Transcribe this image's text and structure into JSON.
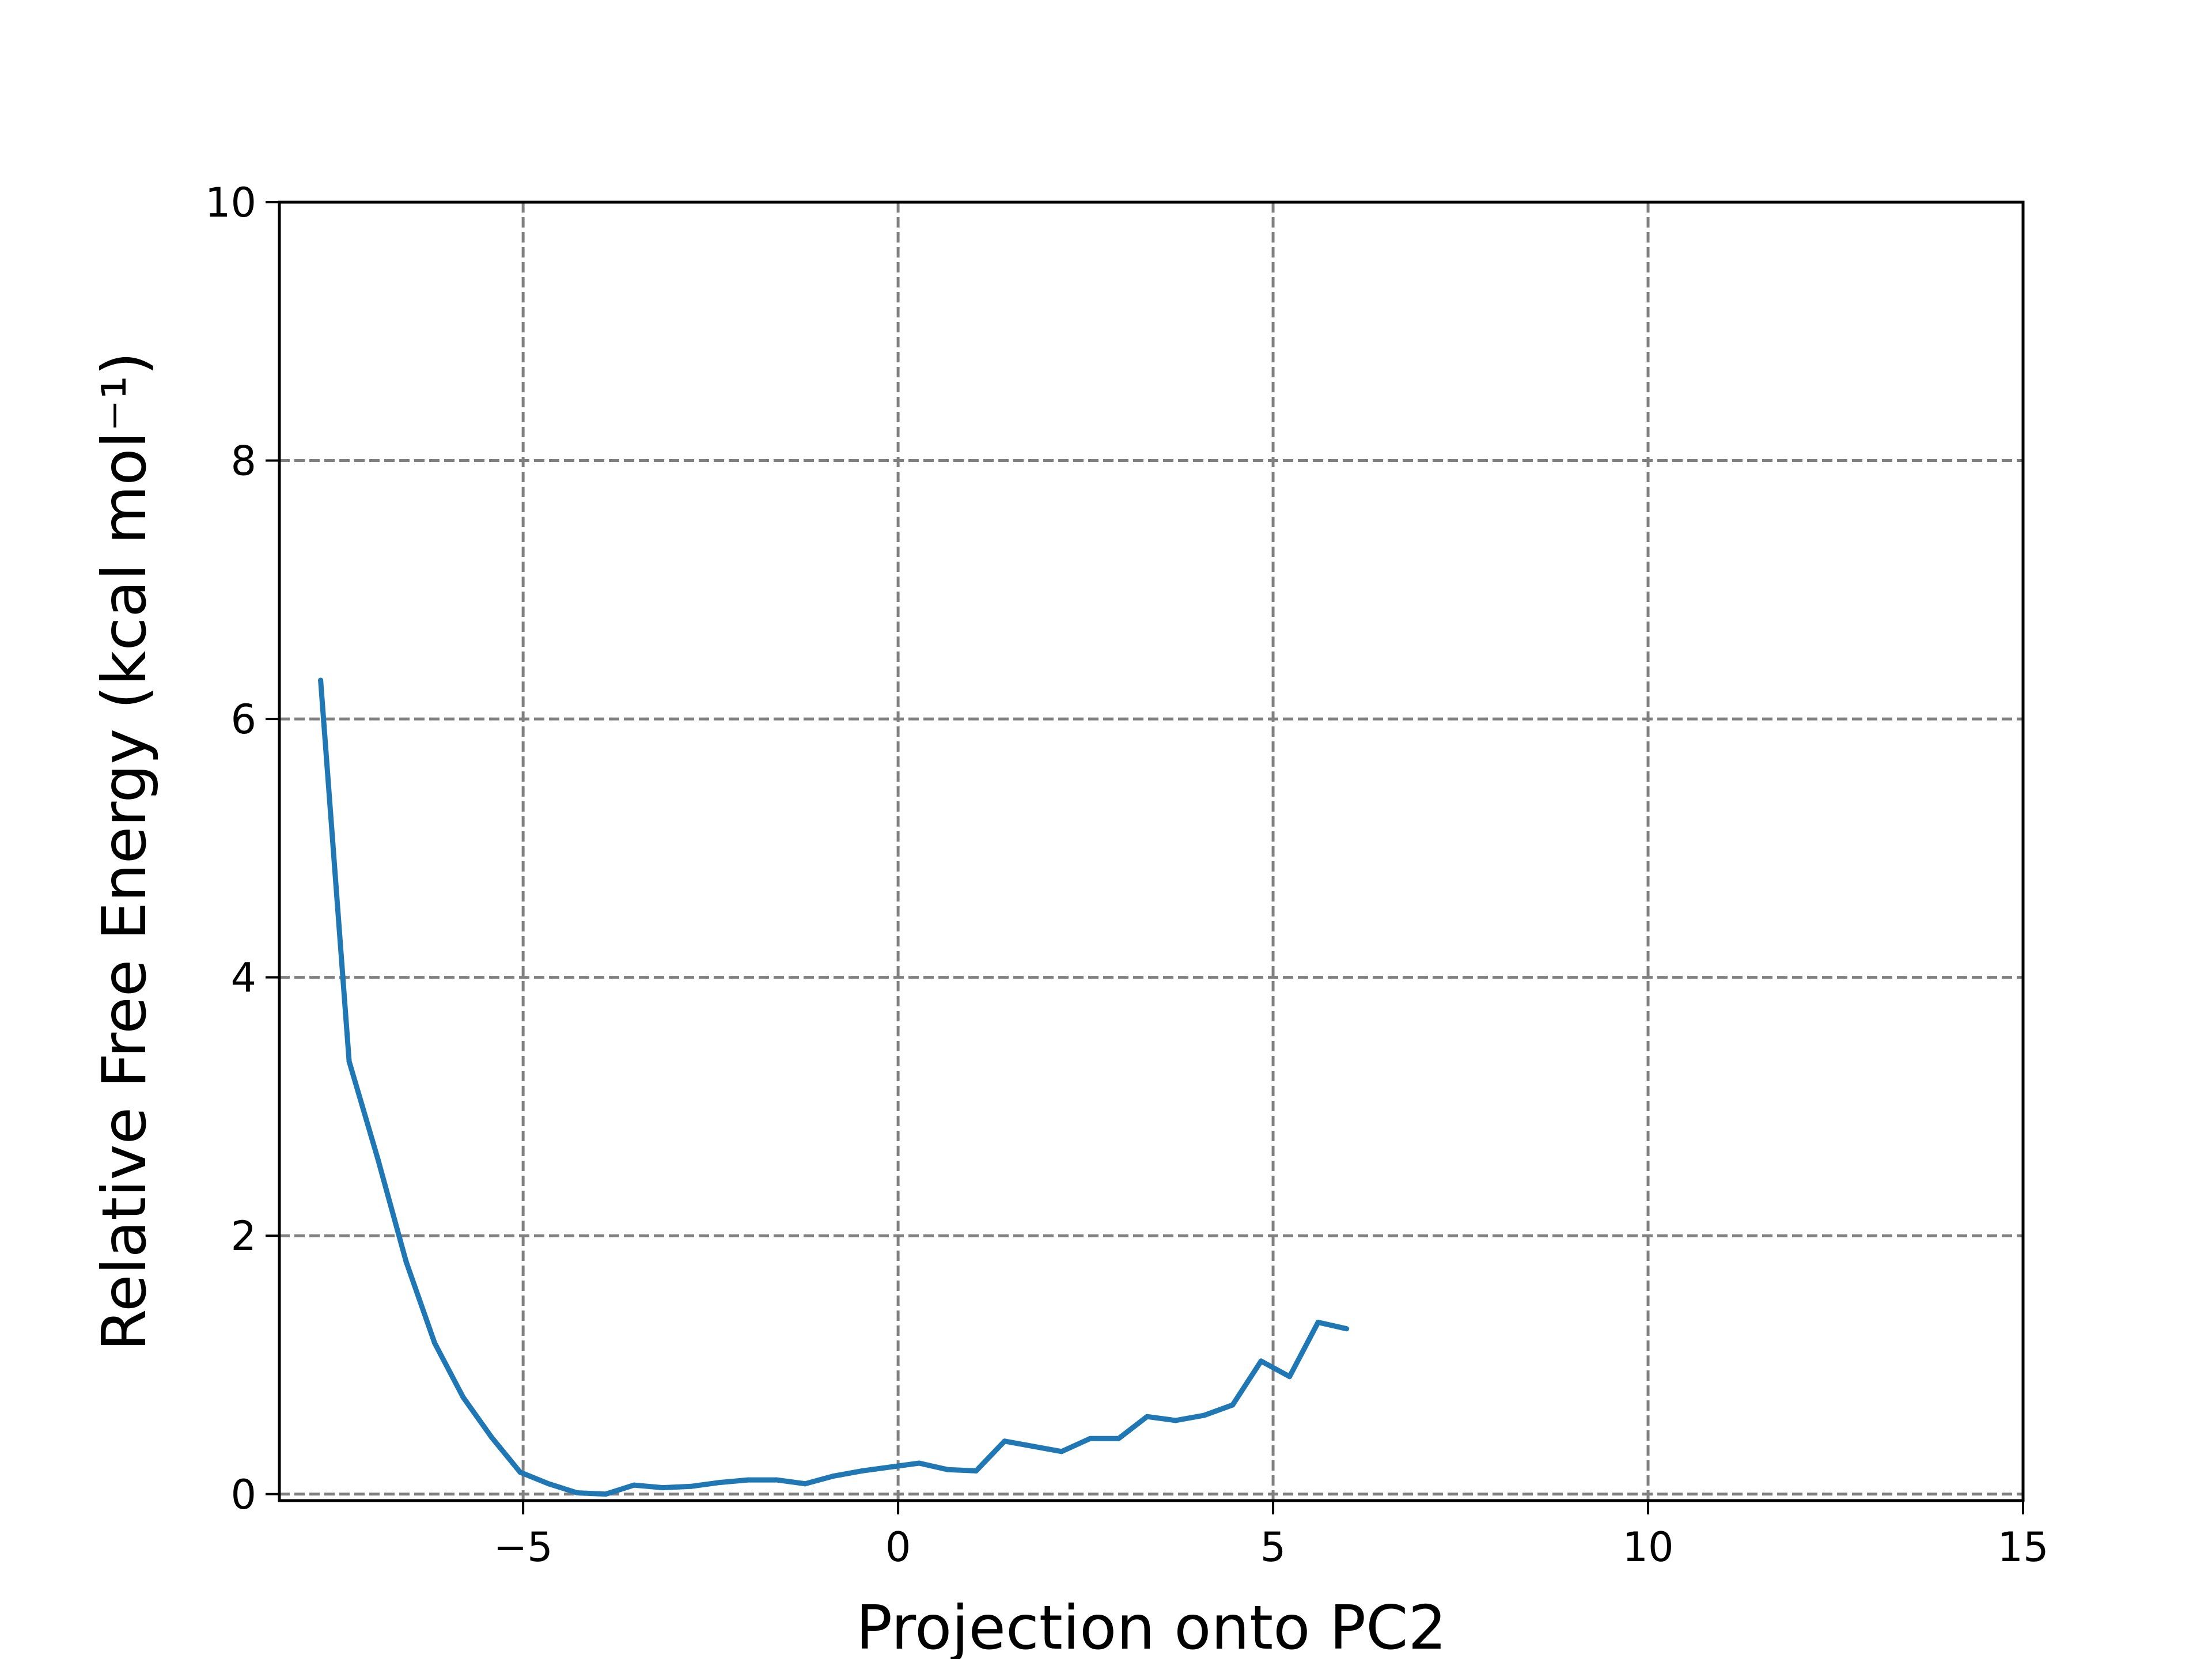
{
  "chart_data": {
    "type": "line",
    "title": "",
    "xlabel": "Projection onto PC2",
    "ylabel": "Relative Free Energy (kcal mol⁻¹)",
    "xlim": [
      -8.25,
      15
    ],
    "ylim": [
      -0.05,
      10
    ],
    "xticks": [
      -5,
      0,
      5,
      10,
      15
    ],
    "xtick_labels": [
      "−5",
      "0",
      "5",
      "10",
      "15"
    ],
    "yticks": [
      0,
      2,
      4,
      6,
      8,
      10
    ],
    "ytick_labels": [
      "0",
      "2",
      "4",
      "6",
      "8",
      "10"
    ],
    "grid": true,
    "legend": "none",
    "series": [
      {
        "color": "#1f77b4",
        "x": [
          -7.7,
          -7.32,
          -6.94,
          -6.56,
          -6.18,
          -5.8,
          -5.42,
          -5.04,
          -4.66,
          -4.28,
          -3.9,
          -3.52,
          -3.14,
          -2.76,
          -2.38,
          -2.0,
          -1.62,
          -1.24,
          -0.86,
          -0.48,
          -0.1,
          0.28,
          0.66,
          1.04,
          1.42,
          1.8,
          2.18,
          2.56,
          2.94,
          3.32,
          3.7,
          4.08,
          4.46,
          4.84,
          5.22,
          5.6,
          5.98
        ],
        "y": [
          6.3,
          3.35,
          2.6,
          1.8,
          1.17,
          0.75,
          0.44,
          0.17,
          0.08,
          0.01,
          0.0,
          0.07,
          0.05,
          0.06,
          0.09,
          0.11,
          0.11,
          0.08,
          0.14,
          0.18,
          0.21,
          0.24,
          0.19,
          0.18,
          0.41,
          0.37,
          0.33,
          0.43,
          0.43,
          0.6,
          0.57,
          0.61,
          0.69,
          1.03,
          0.91,
          1.33,
          1.28
        ]
      }
    ]
  }
}
